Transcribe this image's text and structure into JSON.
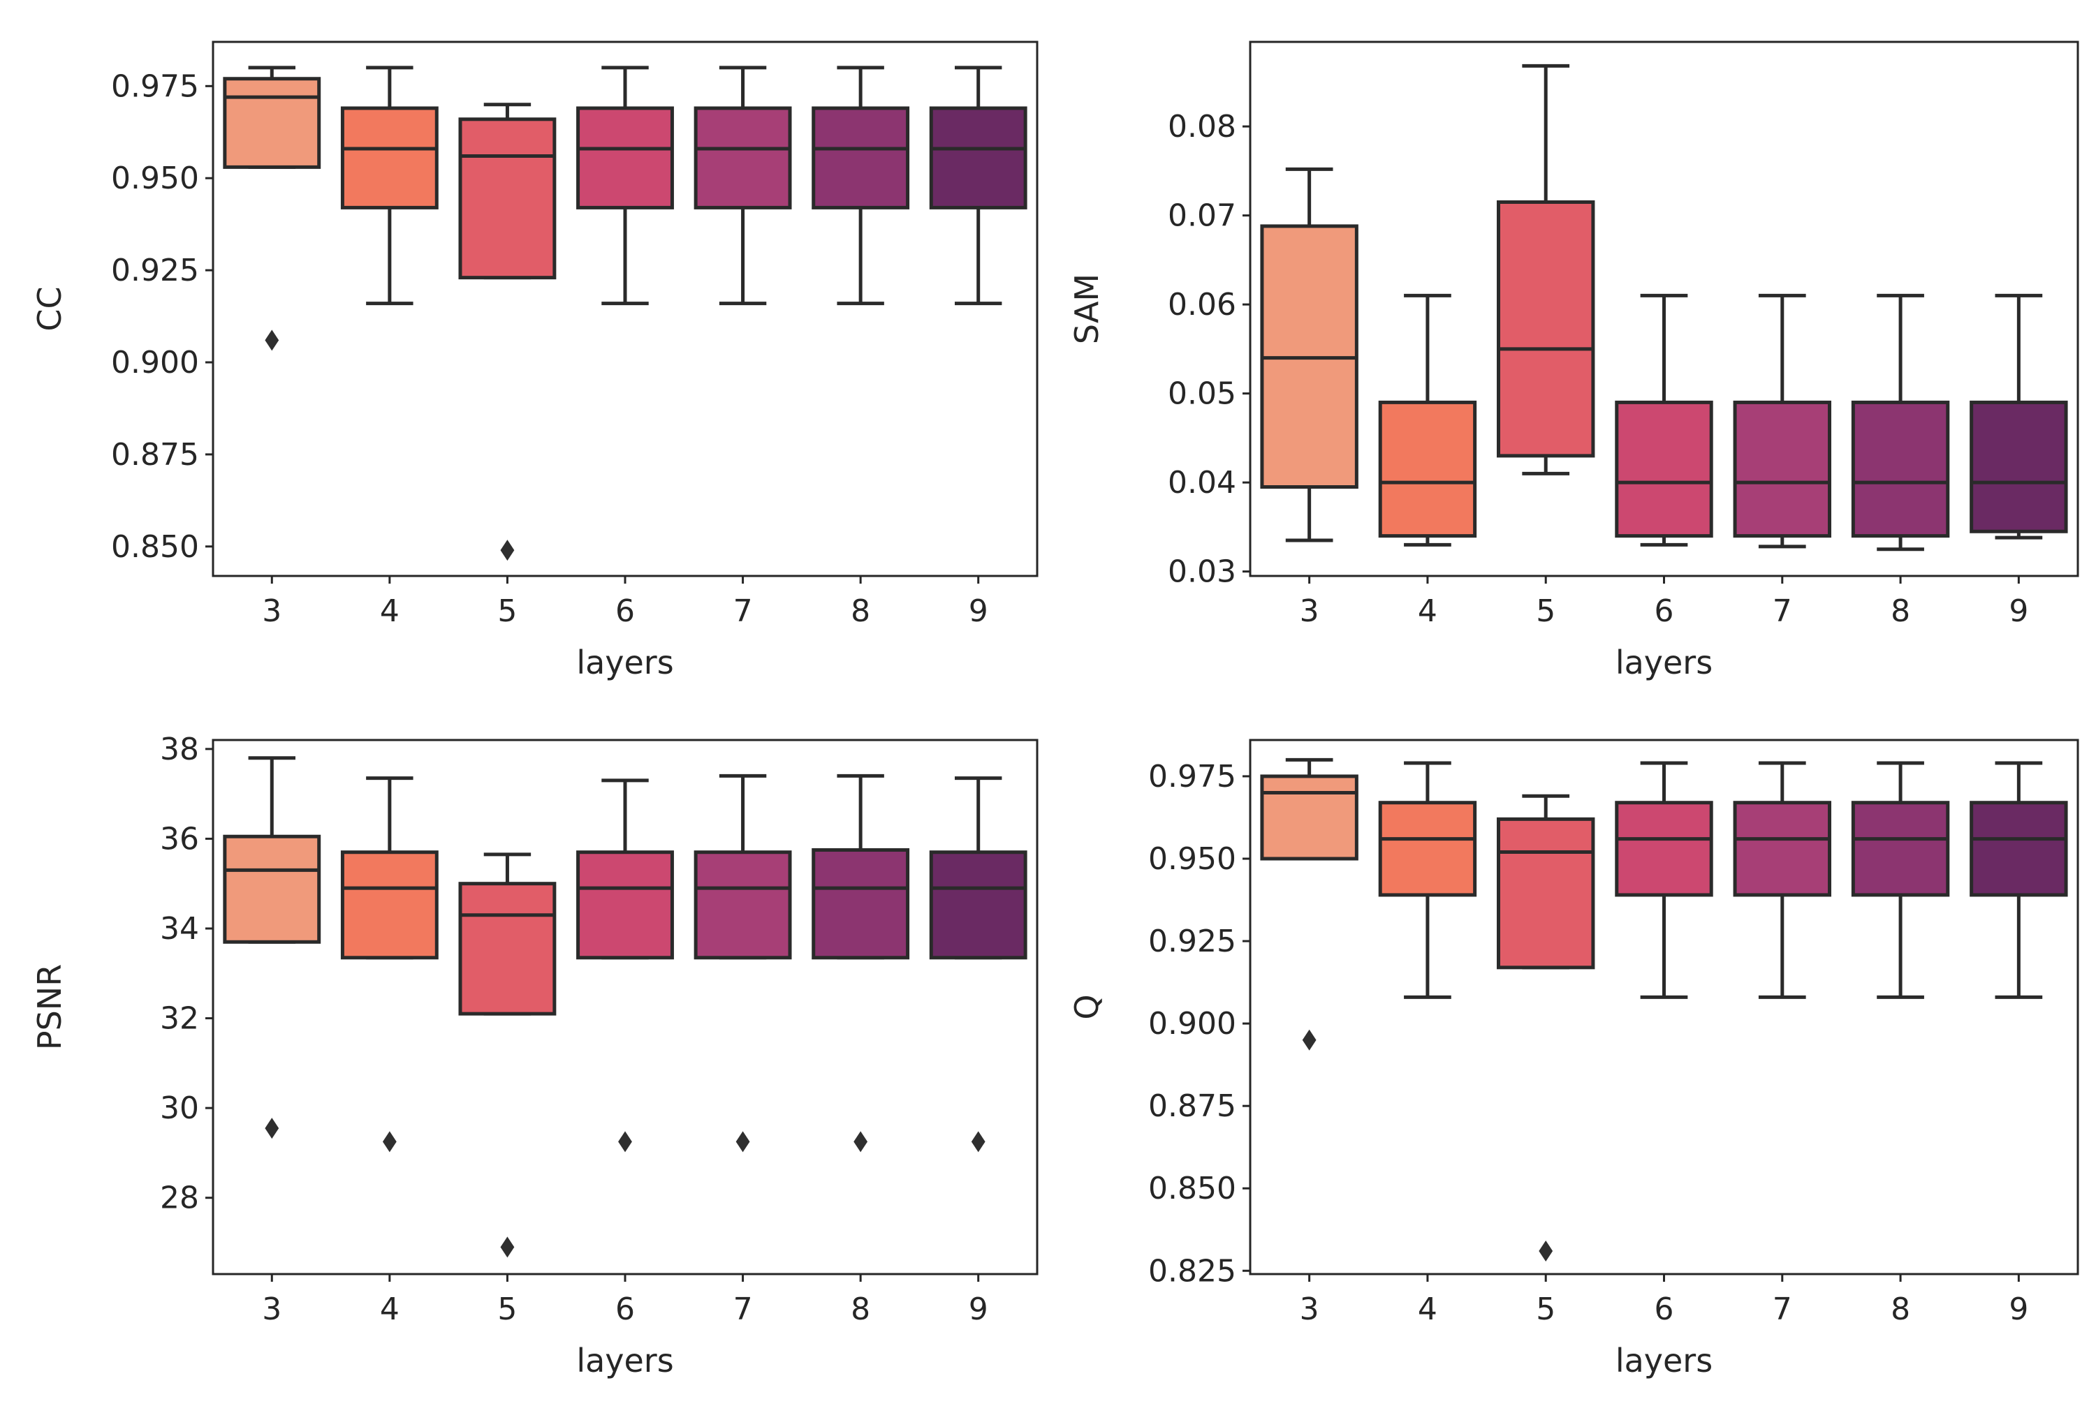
{
  "chart_data": [
    {
      "type": "box",
      "ylabel": "CC",
      "xlabel": "layers",
      "categories": [
        "3",
        "4",
        "5",
        "6",
        "7",
        "8",
        "9"
      ],
      "ylim": [
        0.842,
        0.987
      ],
      "yticks": [
        "0.850",
        "0.875",
        "0.900",
        "0.925",
        "0.950",
        "0.975"
      ],
      "boxes": [
        {
          "low": 0.953,
          "q1": 0.953,
          "median": 0.972,
          "q3": 0.977,
          "high": 0.98,
          "fliers": [
            0.906
          ]
        },
        {
          "low": 0.916,
          "q1": 0.942,
          "median": 0.958,
          "q3": 0.969,
          "high": 0.98,
          "fliers": []
        },
        {
          "low": 0.923,
          "q1": 0.923,
          "median": 0.956,
          "q3": 0.966,
          "high": 0.97,
          "fliers": [
            0.849
          ]
        },
        {
          "low": 0.916,
          "q1": 0.942,
          "median": 0.958,
          "q3": 0.969,
          "high": 0.98,
          "fliers": []
        },
        {
          "low": 0.916,
          "q1": 0.942,
          "median": 0.958,
          "q3": 0.969,
          "high": 0.98,
          "fliers": []
        },
        {
          "low": 0.916,
          "q1": 0.942,
          "median": 0.958,
          "q3": 0.969,
          "high": 0.98,
          "fliers": []
        },
        {
          "low": 0.916,
          "q1": 0.942,
          "median": 0.958,
          "q3": 0.969,
          "high": 0.98,
          "fliers": []
        }
      ]
    },
    {
      "type": "box",
      "ylabel": "SAM",
      "xlabel": "layers",
      "categories": [
        "3",
        "4",
        "5",
        "6",
        "7",
        "8",
        "9"
      ],
      "ylim": [
        0.0295,
        0.0895
      ],
      "yticks": [
        "0.03",
        "0.04",
        "0.05",
        "0.06",
        "0.07",
        "0.08"
      ],
      "boxes": [
        {
          "low": 0.0335,
          "q1": 0.0395,
          "median": 0.054,
          "q3": 0.0688,
          "high": 0.0752,
          "fliers": []
        },
        {
          "low": 0.033,
          "q1": 0.034,
          "median": 0.04,
          "q3": 0.049,
          "high": 0.061,
          "fliers": []
        },
        {
          "low": 0.041,
          "q1": 0.043,
          "median": 0.055,
          "q3": 0.0715,
          "high": 0.0868,
          "fliers": []
        },
        {
          "low": 0.033,
          "q1": 0.034,
          "median": 0.04,
          "q3": 0.049,
          "high": 0.061,
          "fliers": []
        },
        {
          "low": 0.0328,
          "q1": 0.034,
          "median": 0.04,
          "q3": 0.049,
          "high": 0.061,
          "fliers": []
        },
        {
          "low": 0.0325,
          "q1": 0.034,
          "median": 0.04,
          "q3": 0.049,
          "high": 0.061,
          "fliers": []
        },
        {
          "low": 0.0338,
          "q1": 0.0345,
          "median": 0.04,
          "q3": 0.049,
          "high": 0.061,
          "fliers": []
        }
      ]
    },
    {
      "type": "box",
      "ylabel": "PSNR",
      "xlabel": "layers",
      "categories": [
        "3",
        "4",
        "5",
        "6",
        "7",
        "8",
        "9"
      ],
      "ylim": [
        26.3,
        38.2
      ],
      "yticks": [
        "28",
        "30",
        "32",
        "34",
        "36",
        "38"
      ],
      "boxes": [
        {
          "low": 33.7,
          "q1": 33.7,
          "median": 35.3,
          "q3": 36.05,
          "high": 37.8,
          "fliers": [
            29.55
          ]
        },
        {
          "low": 33.35,
          "q1": 33.35,
          "median": 34.9,
          "q3": 35.7,
          "high": 37.35,
          "fliers": [
            29.25
          ]
        },
        {
          "low": 32.1,
          "q1": 32.1,
          "median": 34.3,
          "q3": 35.0,
          "high": 35.65,
          "fliers": [
            26.9
          ]
        },
        {
          "low": 33.35,
          "q1": 33.35,
          "median": 34.9,
          "q3": 35.7,
          "high": 37.3,
          "fliers": [
            29.25
          ]
        },
        {
          "low": 33.35,
          "q1": 33.35,
          "median": 34.9,
          "q3": 35.7,
          "high": 37.4,
          "fliers": [
            29.25
          ]
        },
        {
          "low": 33.35,
          "q1": 33.35,
          "median": 34.9,
          "q3": 35.75,
          "high": 37.4,
          "fliers": [
            29.25
          ]
        },
        {
          "low": 33.35,
          "q1": 33.35,
          "median": 34.9,
          "q3": 35.7,
          "high": 37.35,
          "fliers": [
            29.25
          ]
        }
      ]
    },
    {
      "type": "box",
      "ylabel": "Q",
      "xlabel": "layers",
      "categories": [
        "3",
        "4",
        "5",
        "6",
        "7",
        "8",
        "9"
      ],
      "ylim": [
        0.824,
        0.986
      ],
      "yticks": [
        "0.825",
        "0.850",
        "0.875",
        "0.900",
        "0.925",
        "0.950",
        "0.975"
      ],
      "boxes": [
        {
          "low": 0.95,
          "q1": 0.95,
          "median": 0.97,
          "q3": 0.975,
          "high": 0.98,
          "fliers": [
            0.895
          ]
        },
        {
          "low": 0.908,
          "q1": 0.939,
          "median": 0.956,
          "q3": 0.967,
          "high": 0.979,
          "fliers": []
        },
        {
          "low": 0.917,
          "q1": 0.917,
          "median": 0.952,
          "q3": 0.962,
          "high": 0.969,
          "fliers": [
            0.831
          ]
        },
        {
          "low": 0.908,
          "q1": 0.939,
          "median": 0.956,
          "q3": 0.967,
          "high": 0.979,
          "fliers": []
        },
        {
          "low": 0.908,
          "q1": 0.939,
          "median": 0.956,
          "q3": 0.967,
          "high": 0.979,
          "fliers": []
        },
        {
          "low": 0.908,
          "q1": 0.939,
          "median": 0.956,
          "q3": 0.967,
          "high": 0.979,
          "fliers": []
        },
        {
          "low": 0.908,
          "q1": 0.939,
          "median": 0.956,
          "q3": 0.967,
          "high": 0.979,
          "fliers": []
        }
      ]
    }
  ],
  "palette": [
    "#f09a7b",
    "#f2795e",
    "#e15d68",
    "#cc4870",
    "#a73f76",
    "#8c3570",
    "#6a2a63"
  ]
}
